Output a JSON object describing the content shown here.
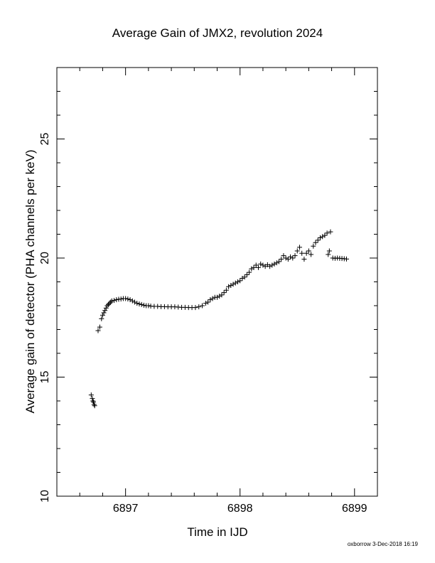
{
  "chart_data": {
    "type": "scatter",
    "title": "Average Gain of JMX2, revolution 2024",
    "xlabel": "Time in IJD",
    "ylabel": "Average gain of detector (PHA channels per keV)",
    "xlim": [
      6896.4,
      6899.2
    ],
    "ylim": [
      10,
      28
    ],
    "x_ticks": [
      6897,
      6898,
      6899
    ],
    "x_minor_step": 0.2,
    "y_ticks": [
      10,
      15,
      20,
      25
    ],
    "y_minor_step": 1,
    "marker": "+",
    "color": "#000000",
    "grid": false,
    "series": [
      {
        "points": [
          [
            6896.7,
            14.25
          ],
          [
            6896.71,
            14.1
          ],
          [
            6896.715,
            14.0
          ],
          [
            6896.72,
            13.95
          ],
          [
            6896.725,
            13.85
          ],
          [
            6896.73,
            13.8
          ],
          [
            6896.76,
            16.95
          ],
          [
            6896.775,
            17.1
          ],
          [
            6896.79,
            17.45
          ],
          [
            6896.8,
            17.6
          ],
          [
            6896.81,
            17.7
          ],
          [
            6896.82,
            17.8
          ],
          [
            6896.83,
            17.9
          ],
          [
            6896.84,
            18.0
          ],
          [
            6896.85,
            18.05
          ],
          [
            6896.86,
            18.1
          ],
          [
            6896.87,
            18.15
          ],
          [
            6896.88,
            18.2
          ],
          [
            6896.9,
            18.22
          ],
          [
            6896.92,
            18.25
          ],
          [
            6896.94,
            18.27
          ],
          [
            6896.96,
            18.28
          ],
          [
            6896.98,
            18.3
          ],
          [
            6897.0,
            18.3
          ],
          [
            6897.02,
            18.28
          ],
          [
            6897.04,
            18.25
          ],
          [
            6897.06,
            18.2
          ],
          [
            6897.08,
            18.15
          ],
          [
            6897.1,
            18.1
          ],
          [
            6897.12,
            18.07
          ],
          [
            6897.14,
            18.05
          ],
          [
            6897.16,
            18.02
          ],
          [
            6897.18,
            18.0
          ],
          [
            6897.2,
            18.0
          ],
          [
            6897.22,
            17.98
          ],
          [
            6897.25,
            17.97
          ],
          [
            6897.28,
            17.97
          ],
          [
            6897.31,
            17.96
          ],
          [
            6897.34,
            17.96
          ],
          [
            6897.37,
            17.95
          ],
          [
            6897.4,
            17.95
          ],
          [
            6897.43,
            17.95
          ],
          [
            6897.46,
            17.94
          ],
          [
            6897.49,
            17.93
          ],
          [
            6897.52,
            17.93
          ],
          [
            6897.55,
            17.92
          ],
          [
            6897.58,
            17.92
          ],
          [
            6897.61,
            17.92
          ],
          [
            6897.64,
            17.95
          ],
          [
            6897.67,
            18.0
          ],
          [
            6897.7,
            18.1
          ],
          [
            6897.72,
            18.15
          ],
          [
            6897.74,
            18.25
          ],
          [
            6897.76,
            18.3
          ],
          [
            6897.78,
            18.35
          ],
          [
            6897.8,
            18.35
          ],
          [
            6897.82,
            18.4
          ],
          [
            6897.84,
            18.45
          ],
          [
            6897.86,
            18.55
          ],
          [
            6897.88,
            18.65
          ],
          [
            6897.9,
            18.8
          ],
          [
            6897.92,
            18.85
          ],
          [
            6897.94,
            18.9
          ],
          [
            6897.96,
            18.95
          ],
          [
            6897.98,
            19.0
          ],
          [
            6898.0,
            19.05
          ],
          [
            6898.02,
            19.15
          ],
          [
            6898.04,
            19.2
          ],
          [
            6898.06,
            19.3
          ],
          [
            6898.08,
            19.4
          ],
          [
            6898.1,
            19.55
          ],
          [
            6898.12,
            19.6
          ],
          [
            6898.14,
            19.7
          ],
          [
            6898.16,
            19.6
          ],
          [
            6898.18,
            19.75
          ],
          [
            6898.2,
            19.7
          ],
          [
            6898.22,
            19.65
          ],
          [
            6898.24,
            19.72
          ],
          [
            6898.26,
            19.65
          ],
          [
            6898.28,
            19.7
          ],
          [
            6898.3,
            19.75
          ],
          [
            6898.32,
            19.8
          ],
          [
            6898.34,
            19.85
          ],
          [
            6898.36,
            19.95
          ],
          [
            6898.38,
            20.1
          ],
          [
            6898.4,
            20.0
          ],
          [
            6898.42,
            19.95
          ],
          [
            6898.44,
            20.05
          ],
          [
            6898.46,
            20.0
          ],
          [
            6898.48,
            20.1
          ],
          [
            6898.5,
            20.3
          ],
          [
            6898.52,
            20.45
          ],
          [
            6898.54,
            20.2
          ],
          [
            6898.56,
            19.95
          ],
          [
            6898.58,
            20.2
          ],
          [
            6898.6,
            20.3
          ],
          [
            6898.62,
            20.15
          ],
          [
            6898.64,
            20.5
          ],
          [
            6898.66,
            20.65
          ],
          [
            6898.68,
            20.75
          ],
          [
            6898.7,
            20.85
          ],
          [
            6898.72,
            20.9
          ],
          [
            6898.74,
            20.95
          ],
          [
            6898.76,
            21.05
          ],
          [
            6898.77,
            20.15
          ],
          [
            6898.78,
            20.3
          ],
          [
            6898.79,
            21.1
          ],
          [
            6898.81,
            20.0
          ],
          [
            6898.83,
            19.99
          ],
          [
            6898.85,
            20.0
          ],
          [
            6898.87,
            19.99
          ],
          [
            6898.89,
            19.98
          ],
          [
            6898.91,
            19.97
          ],
          [
            6898.93,
            19.96
          ]
        ]
      }
    ]
  },
  "footer_text": "oxborrow 3-Dec-2018 16:19"
}
